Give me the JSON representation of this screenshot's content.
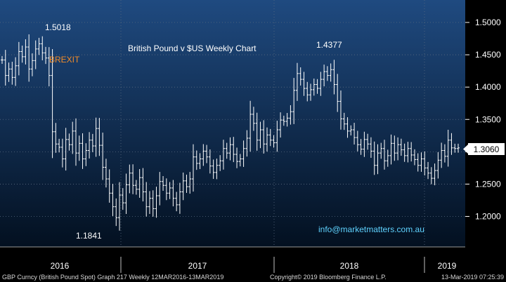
{
  "chart_data": {
    "type": "ohlc",
    "title": "British Pound v $US Weekly Chart",
    "y_range": [
      1.15,
      1.53
    ],
    "y_ticks": [
      "1.5000",
      "1.4500",
      "1.4000",
      "1.3500",
      "1.3000",
      "1.2500",
      "1.2000"
    ],
    "x_ticks": [
      "2016",
      "2017",
      "2018",
      "2019"
    ],
    "last_price": "1.3060",
    "annotations": {
      "high_2016": "1.5018",
      "brexit": "BREXIT",
      "low_2016": "1.1841",
      "high_2018": "1.4377",
      "email": "info@marketmatters.com.au"
    },
    "weekly_close": [
      1.442,
      1.418,
      1.428,
      1.415,
      1.433,
      1.455,
      1.447,
      1.462,
      1.428,
      1.441,
      1.459,
      1.467,
      1.453,
      1.445,
      1.418,
      1.331,
      1.312,
      1.307,
      1.289,
      1.319,
      1.311,
      1.332,
      1.298,
      1.313,
      1.289,
      1.302,
      1.318,
      1.309,
      1.336,
      1.31,
      1.276,
      1.258,
      1.236,
      1.215,
      1.198,
      1.233,
      1.221,
      1.249,
      1.267,
      1.248,
      1.242,
      1.26,
      1.238,
      1.215,
      1.228,
      1.212,
      1.232,
      1.254,
      1.248,
      1.236,
      1.244,
      1.228,
      1.218,
      1.238,
      1.255,
      1.246,
      1.258,
      1.292,
      1.282,
      1.289,
      1.301,
      1.292,
      1.278,
      1.268,
      1.279,
      1.286,
      1.305,
      1.298,
      1.311,
      1.296,
      1.285,
      1.289,
      1.305,
      1.321,
      1.358,
      1.344,
      1.318,
      1.334,
      1.312,
      1.326,
      1.318,
      1.314,
      1.334,
      1.349,
      1.347,
      1.352,
      1.362,
      1.395,
      1.421,
      1.412,
      1.398,
      1.388,
      1.396,
      1.404,
      1.398,
      1.412,
      1.424,
      1.418,
      1.427,
      1.404,
      1.378,
      1.351,
      1.343,
      1.332,
      1.334,
      1.322,
      1.311,
      1.304,
      1.319,
      1.312,
      1.301,
      1.279,
      1.298,
      1.305,
      1.286,
      1.294,
      1.313,
      1.298,
      1.311,
      1.303,
      1.294,
      1.305,
      1.295,
      1.288,
      1.279,
      1.289,
      1.275,
      1.267,
      1.259,
      1.271,
      1.287,
      1.302,
      1.293,
      1.318,
      1.306,
      1.305,
      1.306
    ]
  },
  "footer": {
    "source": "GBP Curncy (British Pound Spot) Graph 217  Weekly 12MAR2016-13MAR2019",
    "copyright": "Copyright© 2019 Bloomberg Finance L.P.",
    "timestamp": "13-Mar-2019 07:25:39"
  },
  "colors": {
    "background": "#000000",
    "plot_top": "#1f4a80",
    "plot_bottom": "#031020",
    "bar": "#ffffff",
    "title": "#9fe09f",
    "brexit": "#f28c28",
    "email": "#5fd3ff",
    "grid": "#5a6b80"
  }
}
